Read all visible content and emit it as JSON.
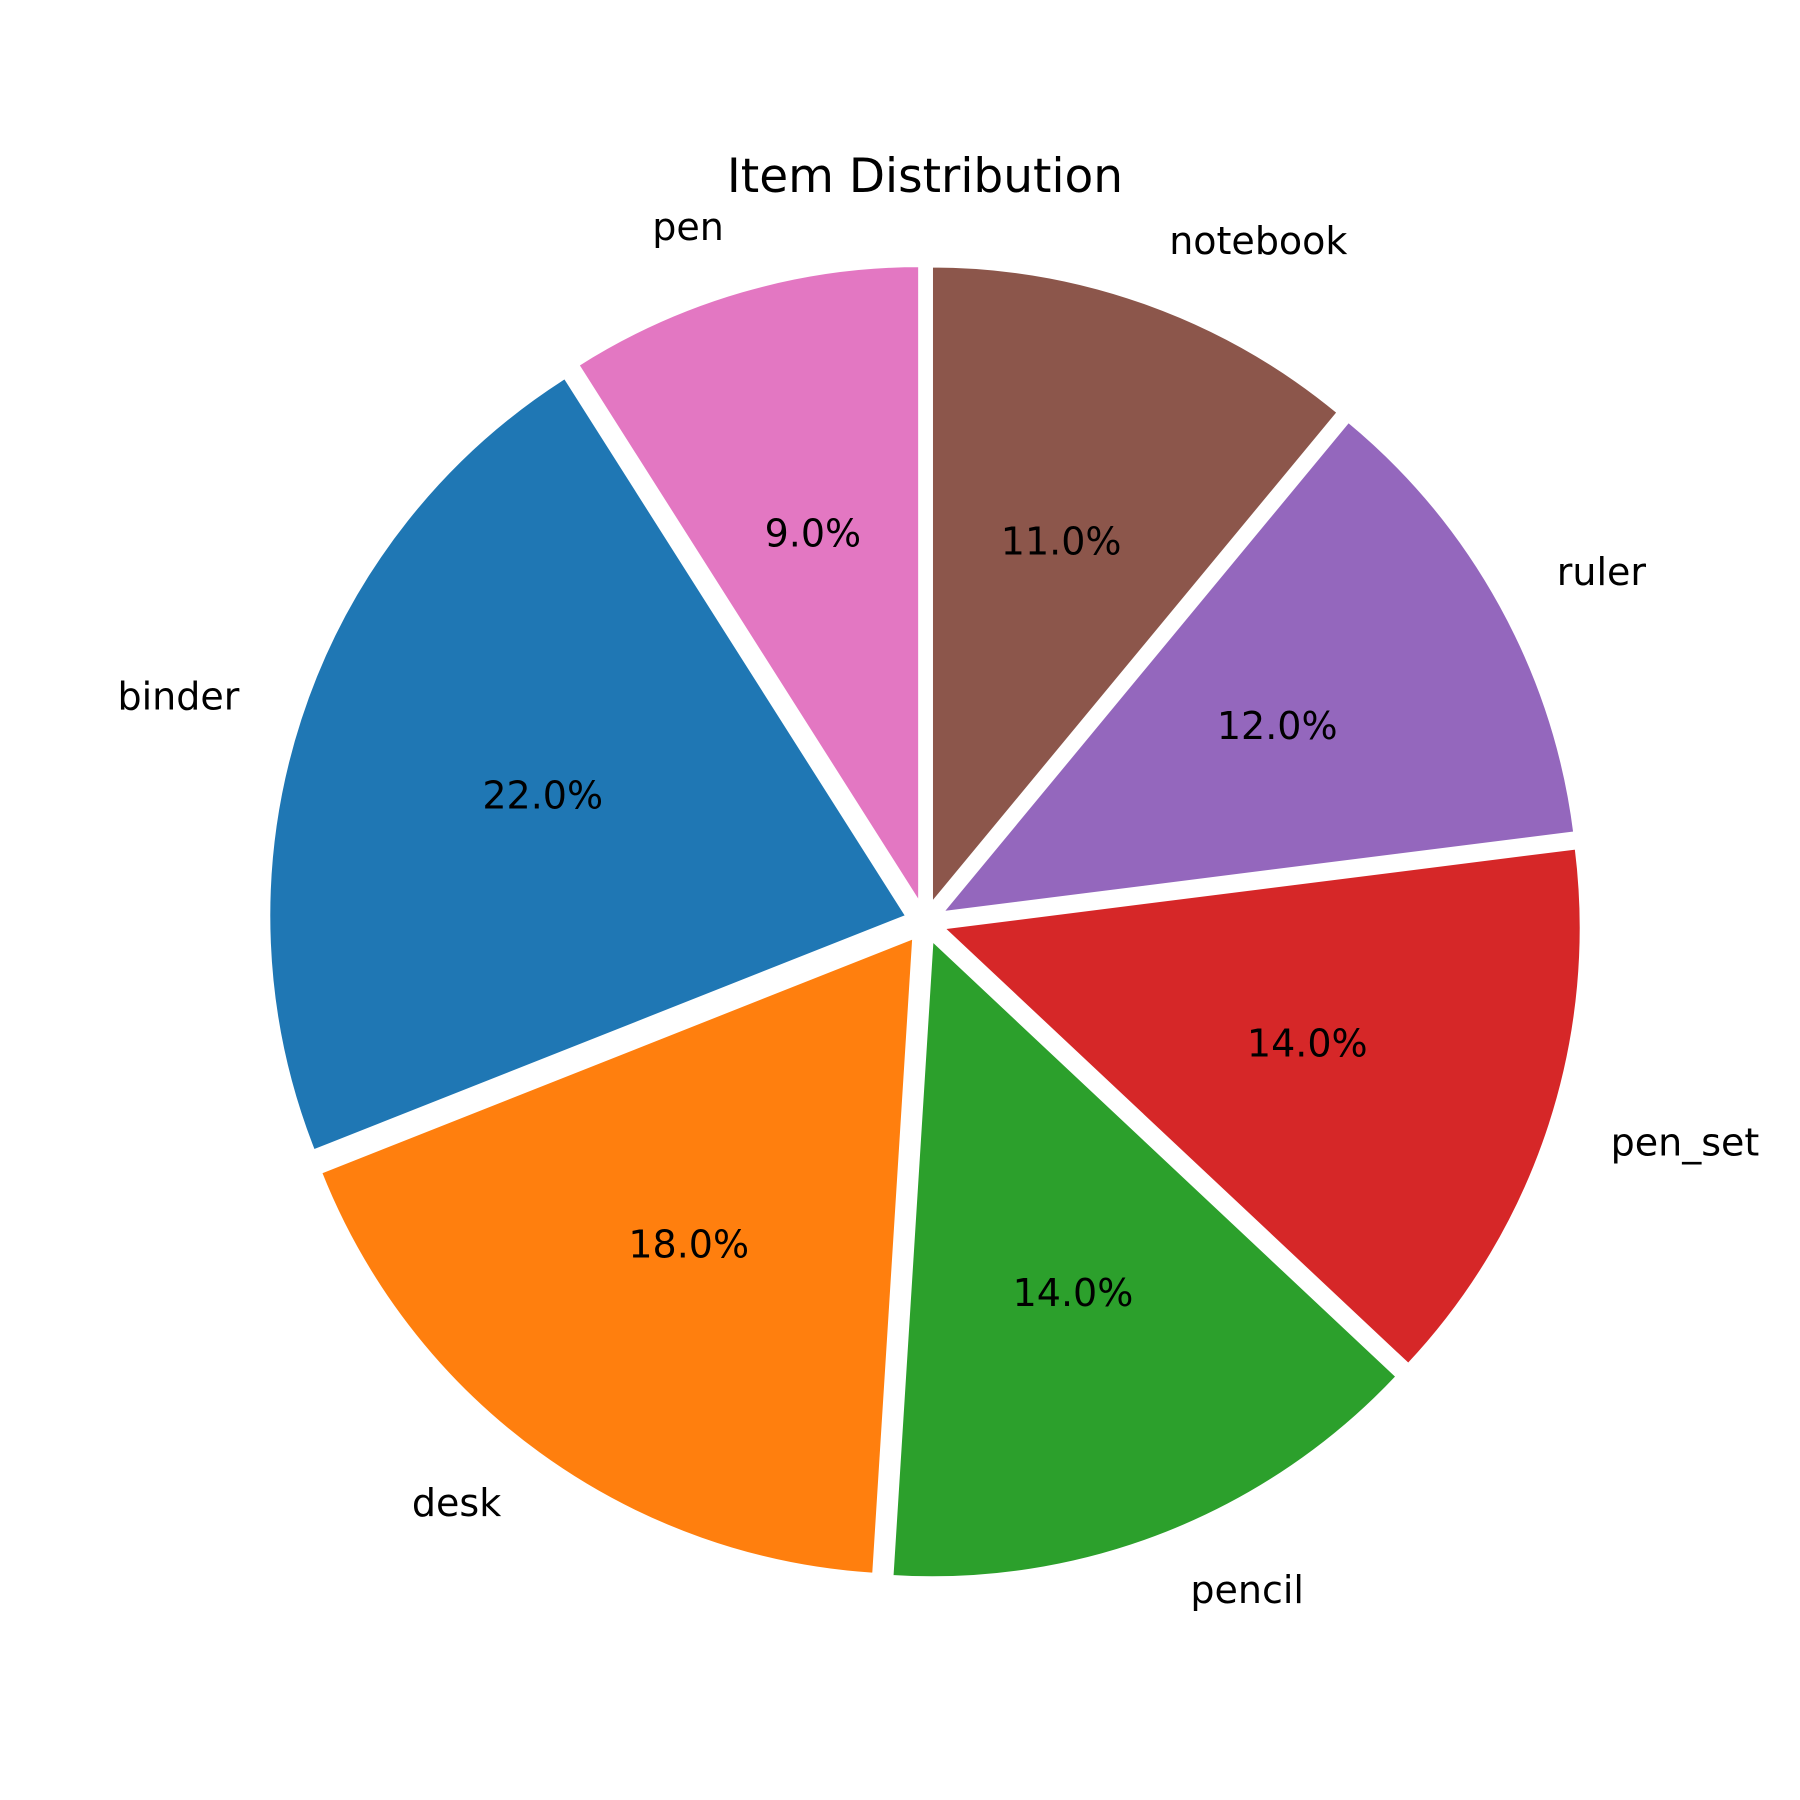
{
  "chart_data": {
    "type": "pie",
    "title": "Item Distribution",
    "start_angle_deg": 90,
    "direction": "counterclockwise",
    "explode": 0.03,
    "slices": [
      {
        "label": "pen",
        "value": 9.0,
        "pct_label": "9.0%",
        "color": "#e377c2"
      },
      {
        "label": "binder",
        "value": 22.0,
        "pct_label": "22.0%",
        "color": "#1f77b4"
      },
      {
        "label": "desk",
        "value": 18.0,
        "pct_label": "18.0%",
        "color": "#ff7f0e"
      },
      {
        "label": "pencil",
        "value": 14.0,
        "pct_label": "14.0%",
        "color": "#2ca02c"
      },
      {
        "label": "pen_set",
        "value": 14.0,
        "pct_label": "14.0%",
        "color": "#d62728"
      },
      {
        "label": "ruler",
        "value": 12.0,
        "pct_label": "12.0%",
        "color": "#9467bd"
      },
      {
        "label": "notebook",
        "value": 11.0,
        "pct_label": "11.0%",
        "color": "#8c564b"
      }
    ]
  }
}
